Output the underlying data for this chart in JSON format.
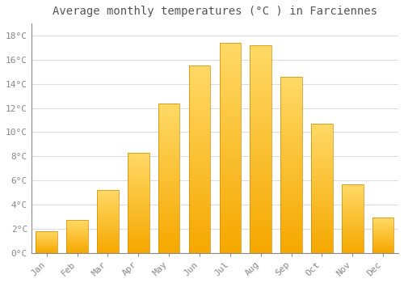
{
  "title": "Average monthly temperatures (°C ) in Farciennes",
  "months": [
    "Jan",
    "Feb",
    "Mar",
    "Apr",
    "May",
    "Jun",
    "Jul",
    "Aug",
    "Sep",
    "Oct",
    "Nov",
    "Dec"
  ],
  "temperatures": [
    1.8,
    2.7,
    5.2,
    8.3,
    12.4,
    15.5,
    17.4,
    17.2,
    14.6,
    10.7,
    5.7,
    2.9
  ],
  "bar_color_bottom": "#F5A800",
  "bar_color_top": "#FFD966",
  "background_color": "#FFFFFF",
  "grid_color": "#DDDDDD",
  "ylim": [
    0,
    19
  ],
  "yticks": [
    0,
    2,
    4,
    6,
    8,
    10,
    12,
    14,
    16,
    18
  ],
  "ytick_labels": [
    "0°C",
    "2°C",
    "4°C",
    "6°C",
    "8°C",
    "10°C",
    "12°C",
    "14°C",
    "16°C",
    "18°C"
  ],
  "title_fontsize": 10,
  "tick_fontsize": 8,
  "tick_color": "#888888",
  "title_color": "#555555",
  "bar_width": 0.7,
  "n_gradient_steps": 100
}
